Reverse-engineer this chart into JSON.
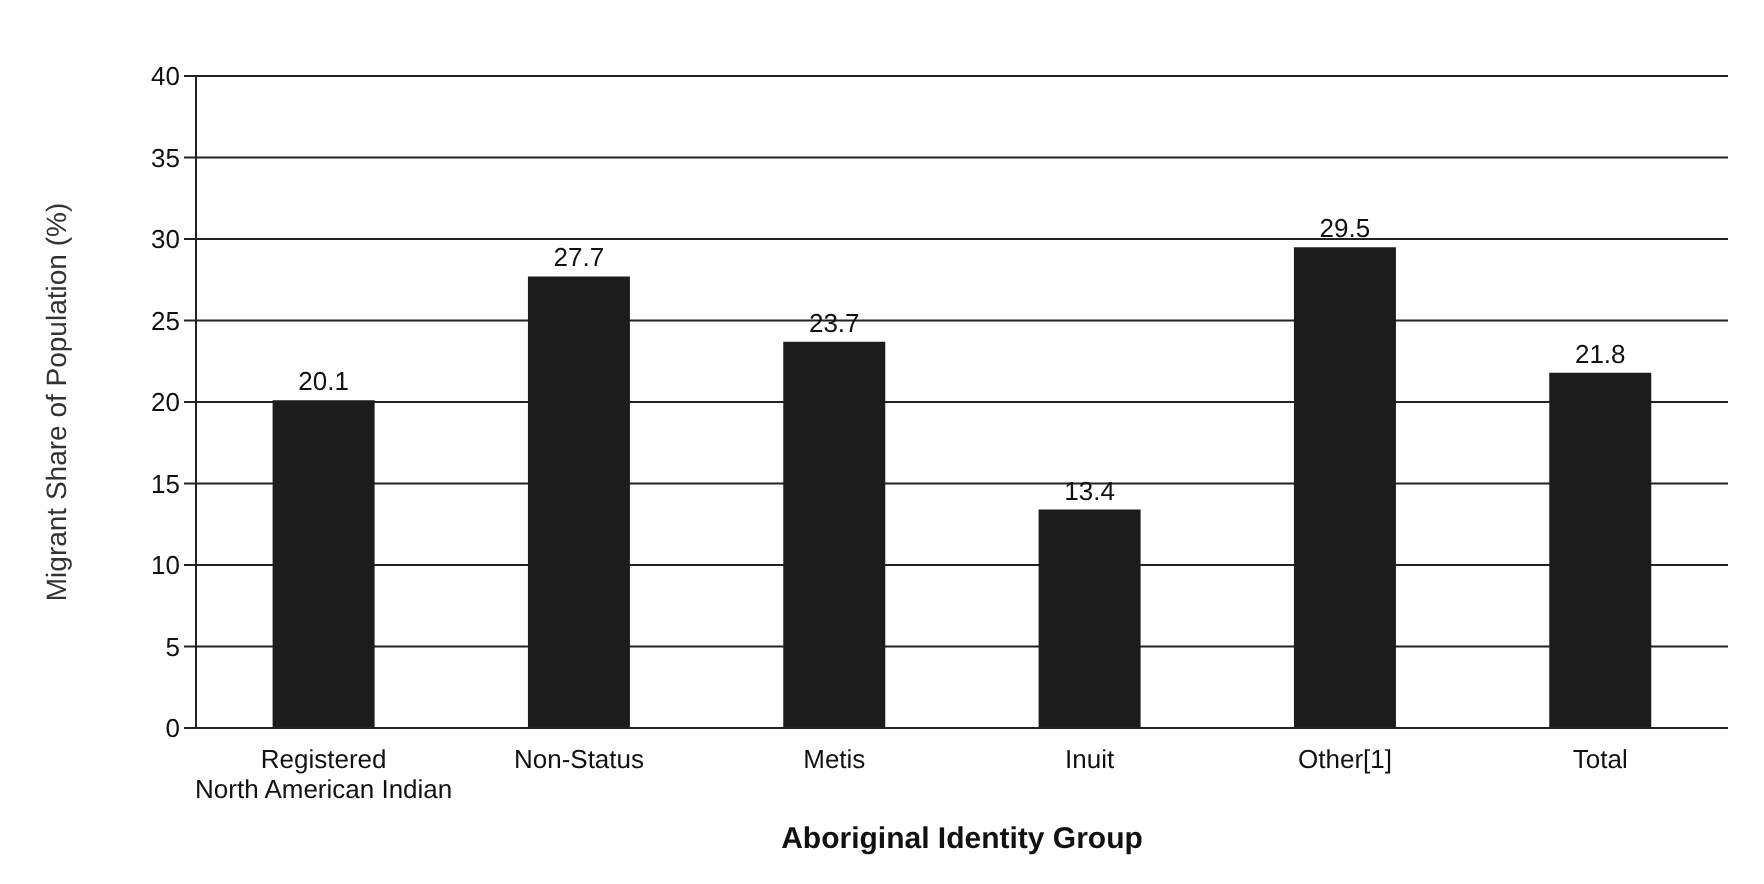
{
  "chart_data": {
    "type": "bar",
    "xlabel": "Aboriginal Identity Group",
    "ylabel": "Migrant Share of Population (%)",
    "categories": [
      "Registered\nNorth American Indian",
      "Non-Status",
      "Metis",
      "Inuit",
      "Other[1]",
      "Total"
    ],
    "values": [
      20.1,
      27.7,
      23.7,
      13.4,
      29.5,
      21.8
    ],
    "color": "#1c1c1c",
    "ylim": [
      0,
      40
    ],
    "yticks": [
      0,
      5,
      10,
      15,
      20,
      25,
      30,
      35,
      40
    ],
    "grid": "y",
    "data_labels": true
  }
}
